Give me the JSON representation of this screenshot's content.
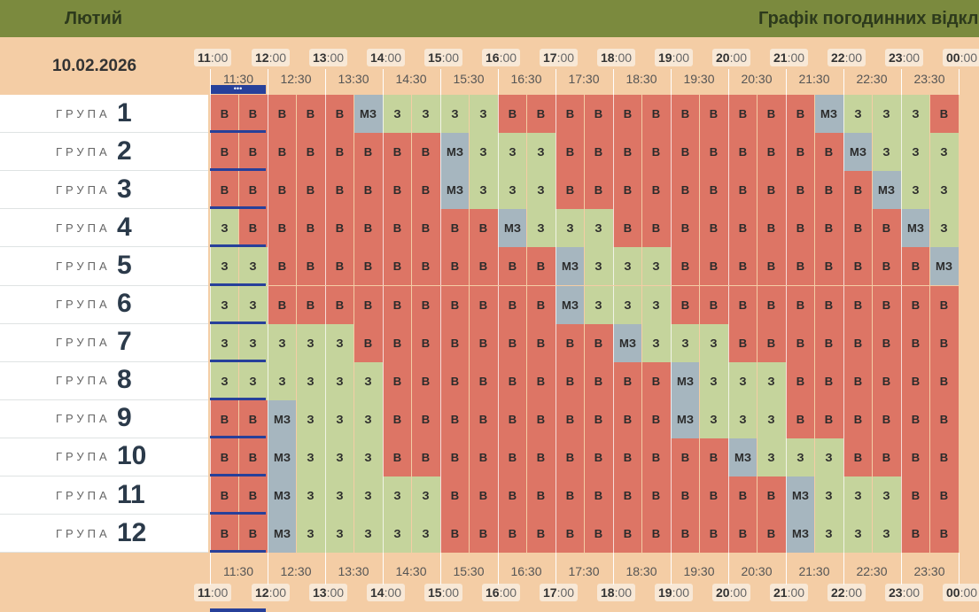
{
  "header": {
    "month": "Лютий",
    "title": "Графік погодинних відкл"
  },
  "date": "10.02.2026",
  "hours": [
    "11",
    "12",
    "13",
    "14",
    "15",
    "16",
    "17",
    "18",
    "19",
    "20",
    "21",
    "22",
    "23",
    "00"
  ],
  "half_labels": [
    "11:30",
    "12:30",
    "13:30",
    "14:30",
    "15:30",
    "16:30",
    "17:30",
    "18:30",
    "19:30",
    "20:30",
    "21:30",
    "22:30",
    "23:30"
  ],
  "group_word": "ГРУПА",
  "group_numbers": [
    "1",
    "2",
    "3",
    "4",
    "5",
    "6",
    "7",
    "8",
    "9",
    "10",
    "11",
    "12"
  ],
  "status_labels": {
    "v": "В",
    "z": "З",
    "mz": "МЗ"
  },
  "colors": {
    "v": "#dd7565",
    "z": "#c5d49c",
    "mz": "#a6b6bf",
    "header": "#7b8a3e",
    "background": "#f4cda5",
    "current": "#27409a"
  },
  "current_marker": "•••",
  "schedule": [
    [
      "v",
      "v",
      "v",
      "v",
      "v",
      "mz",
      "z",
      "z",
      "z",
      "z",
      "v",
      "v",
      "v",
      "v",
      "v",
      "v",
      "v",
      "v",
      "v",
      "v",
      "v",
      "mz",
      "z",
      "z",
      "z",
      "v"
    ],
    [
      "v",
      "v",
      "v",
      "v",
      "v",
      "v",
      "v",
      "v",
      "mz",
      "z",
      "z",
      "z",
      "v",
      "v",
      "v",
      "v",
      "v",
      "v",
      "v",
      "v",
      "v",
      "v",
      "mz",
      "z",
      "z",
      "z"
    ],
    [
      "v",
      "v",
      "v",
      "v",
      "v",
      "v",
      "v",
      "v",
      "mz",
      "z",
      "z",
      "z",
      "v",
      "v",
      "v",
      "v",
      "v",
      "v",
      "v",
      "v",
      "v",
      "v",
      "v",
      "mz",
      "z",
      "z"
    ],
    [
      "z",
      "v",
      "v",
      "v",
      "v",
      "v",
      "v",
      "v",
      "v",
      "v",
      "mz",
      "z",
      "z",
      "z",
      "v",
      "v",
      "v",
      "v",
      "v",
      "v",
      "v",
      "v",
      "v",
      "v",
      "mz",
      "z"
    ],
    [
      "z",
      "z",
      "v",
      "v",
      "v",
      "v",
      "v",
      "v",
      "v",
      "v",
      "v",
      "v",
      "mz",
      "z",
      "z",
      "z",
      "v",
      "v",
      "v",
      "v",
      "v",
      "v",
      "v",
      "v",
      "v",
      "mz"
    ],
    [
      "z",
      "z",
      "v",
      "v",
      "v",
      "v",
      "v",
      "v",
      "v",
      "v",
      "v",
      "v",
      "mz",
      "z",
      "z",
      "z",
      "v",
      "v",
      "v",
      "v",
      "v",
      "v",
      "v",
      "v",
      "v",
      "v"
    ],
    [
      "z",
      "z",
      "z",
      "z",
      "z",
      "v",
      "v",
      "v",
      "v",
      "v",
      "v",
      "v",
      "v",
      "v",
      "mz",
      "z",
      "z",
      "z",
      "v",
      "v",
      "v",
      "v",
      "v",
      "v",
      "v",
      "v"
    ],
    [
      "z",
      "z",
      "z",
      "z",
      "z",
      "z",
      "v",
      "v",
      "v",
      "v",
      "v",
      "v",
      "v",
      "v",
      "v",
      "v",
      "mz",
      "z",
      "z",
      "z",
      "v",
      "v",
      "v",
      "v",
      "v",
      "v"
    ],
    [
      "v",
      "v",
      "mz",
      "z",
      "z",
      "z",
      "v",
      "v",
      "v",
      "v",
      "v",
      "v",
      "v",
      "v",
      "v",
      "v",
      "mz",
      "z",
      "z",
      "z",
      "v",
      "v",
      "v",
      "v",
      "v",
      "v"
    ],
    [
      "v",
      "v",
      "mz",
      "z",
      "z",
      "z",
      "v",
      "v",
      "v",
      "v",
      "v",
      "v",
      "v",
      "v",
      "v",
      "v",
      "v",
      "v",
      "mz",
      "z",
      "z",
      "z",
      "v",
      "v",
      "v",
      "v"
    ],
    [
      "v",
      "v",
      "mz",
      "z",
      "z",
      "z",
      "z",
      "z",
      "v",
      "v",
      "v",
      "v",
      "v",
      "v",
      "v",
      "v",
      "v",
      "v",
      "v",
      "v",
      "mz",
      "z",
      "z",
      "z",
      "v",
      "v"
    ],
    [
      "v",
      "v",
      "mz",
      "z",
      "z",
      "z",
      "z",
      "z",
      "v",
      "v",
      "v",
      "v",
      "v",
      "v",
      "v",
      "v",
      "v",
      "v",
      "v",
      "v",
      "mz",
      "z",
      "z",
      "z",
      "v",
      "v"
    ]
  ]
}
